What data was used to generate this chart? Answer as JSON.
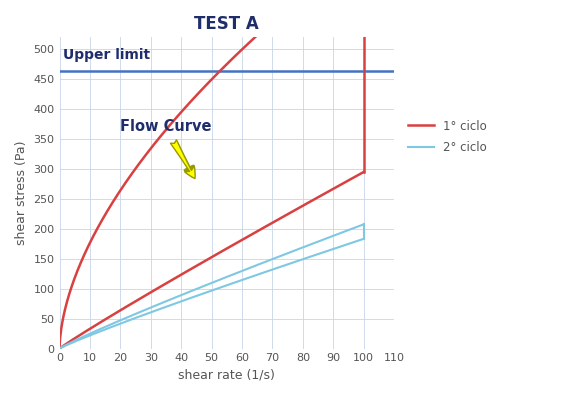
{
  "title": "TEST A",
  "xlabel": "shear rate (1/s)",
  "ylabel": "shear stress (Pa)",
  "xlim": [
    0,
    110
  ],
  "ylim": [
    0,
    520
  ],
  "xticks": [
    0,
    10,
    20,
    30,
    40,
    50,
    60,
    70,
    80,
    90,
    100,
    110
  ],
  "yticks": [
    0,
    50,
    100,
    150,
    200,
    250,
    300,
    350,
    400,
    450,
    500
  ],
  "upper_limit_y": 463,
  "upper_limit_label": "Upper limit",
  "upper_limit_color": "#4472C4",
  "ciclo1_color": "#D94040",
  "ciclo2_color": "#7EC8E3",
  "legend_1": "1° ciclo",
  "legend_2": "2° ciclo",
  "background_color": "#FFFFFF",
  "grid_color": "#C8D4E8",
  "title_color": "#1F2D6B",
  "label_color": "#555555",
  "upper_limit_text_color": "#1F2D6B",
  "flow_curve_text_color": "#1F2D6B",
  "annotation_arrow_fc": "#FFFF00",
  "annotation_arrow_ec": "#999900",
  "ciclo1_up_a": 46.5,
  "ciclo1_up_n": 0.58,
  "ciclo1_down_at100": 295,
  "ciclo1_down_at0": 5,
  "ciclo2_up_a": 3.0,
  "ciclo2_up_n": 0.92,
  "ciclo2_down_a": 2.65,
  "ciclo2_down_n": 0.92
}
